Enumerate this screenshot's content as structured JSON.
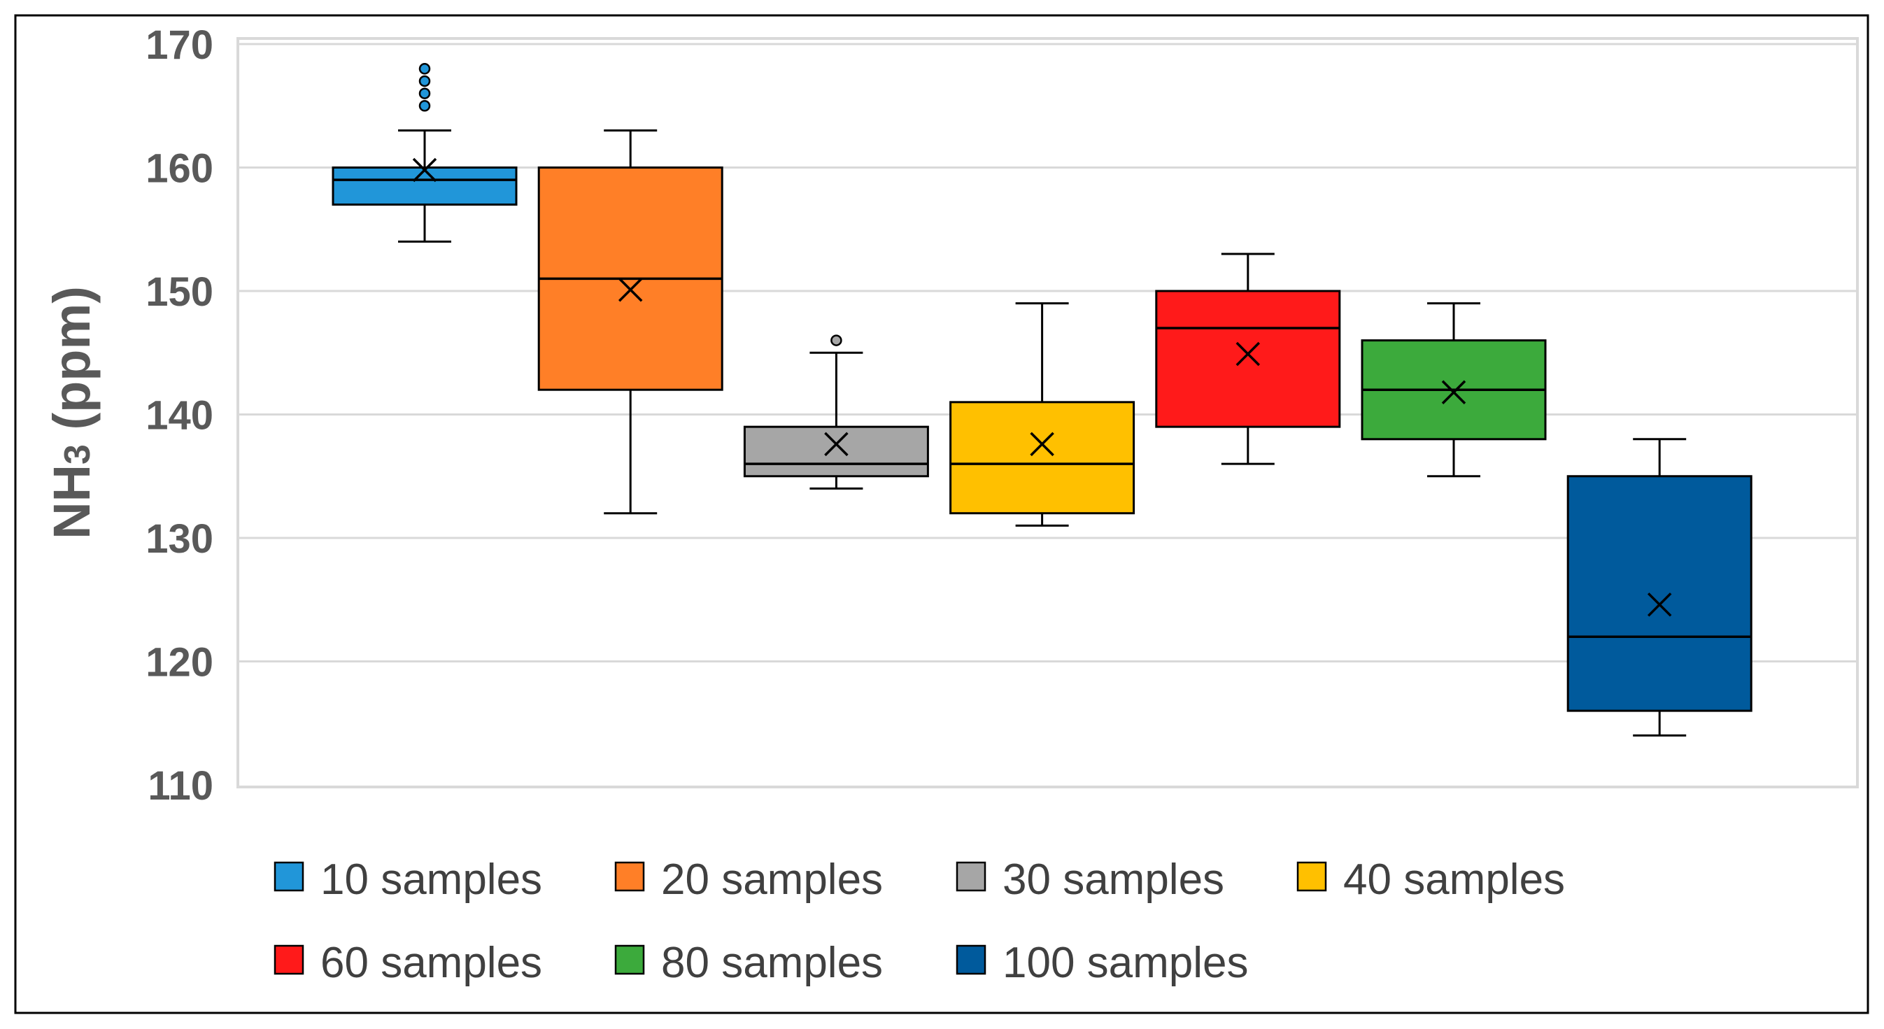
{
  "chart_data": {
    "type": "box",
    "title": "",
    "xlabel": "",
    "ylabel": "NH3 (ppm)",
    "ylabel_main": "NH",
    "ylabel_sub": "3",
    "ylabel_rest": " (ppm)",
    "ylim": [
      110,
      170
    ],
    "yticks": [
      110,
      120,
      130,
      140,
      150,
      160,
      170
    ],
    "grid": true,
    "legend_position": "bottom",
    "series": [
      {
        "name": "10 samples",
        "color": "#2196D9",
        "whisker_low": 154,
        "q1": 157,
        "median": 159,
        "q3": 160,
        "whisker_high": 163,
        "mean": 159.8,
        "outliers": [
          165,
          166,
          167,
          168
        ]
      },
      {
        "name": "20 samples",
        "color": "#FF7F27",
        "whisker_low": 132,
        "q1": 142,
        "median": 151,
        "q3": 160,
        "whisker_high": 163,
        "mean": 150.1,
        "outliers": []
      },
      {
        "name": "30 samples",
        "color": "#A6A6A6",
        "whisker_low": 134,
        "q1": 135,
        "median": 136,
        "q3": 139,
        "whisker_high": 145,
        "mean": 137.6,
        "outliers": [
          146
        ]
      },
      {
        "name": "40 samples",
        "color": "#FFC000",
        "whisker_low": 131,
        "q1": 132,
        "median": 136,
        "q3": 141,
        "whisker_high": 149,
        "mean": 137.6,
        "outliers": []
      },
      {
        "name": "60 samples",
        "color": "#FF1A1A",
        "whisker_low": 136,
        "q1": 139,
        "median": 147,
        "q3": 150,
        "whisker_high": 153,
        "mean": 144.9,
        "outliers": []
      },
      {
        "name": "80 samples",
        "color": "#3CAA3C",
        "whisker_low": 135,
        "q1": 138,
        "median": 142,
        "q3": 146,
        "whisker_high": 149,
        "mean": 141.8,
        "outliers": []
      },
      {
        "name": "100 samples",
        "color": "#005A9C",
        "whisker_low": 114,
        "q1": 116,
        "median": 122,
        "q3": 135,
        "whisker_high": 138,
        "mean": 124.6,
        "outliers": []
      }
    ]
  }
}
